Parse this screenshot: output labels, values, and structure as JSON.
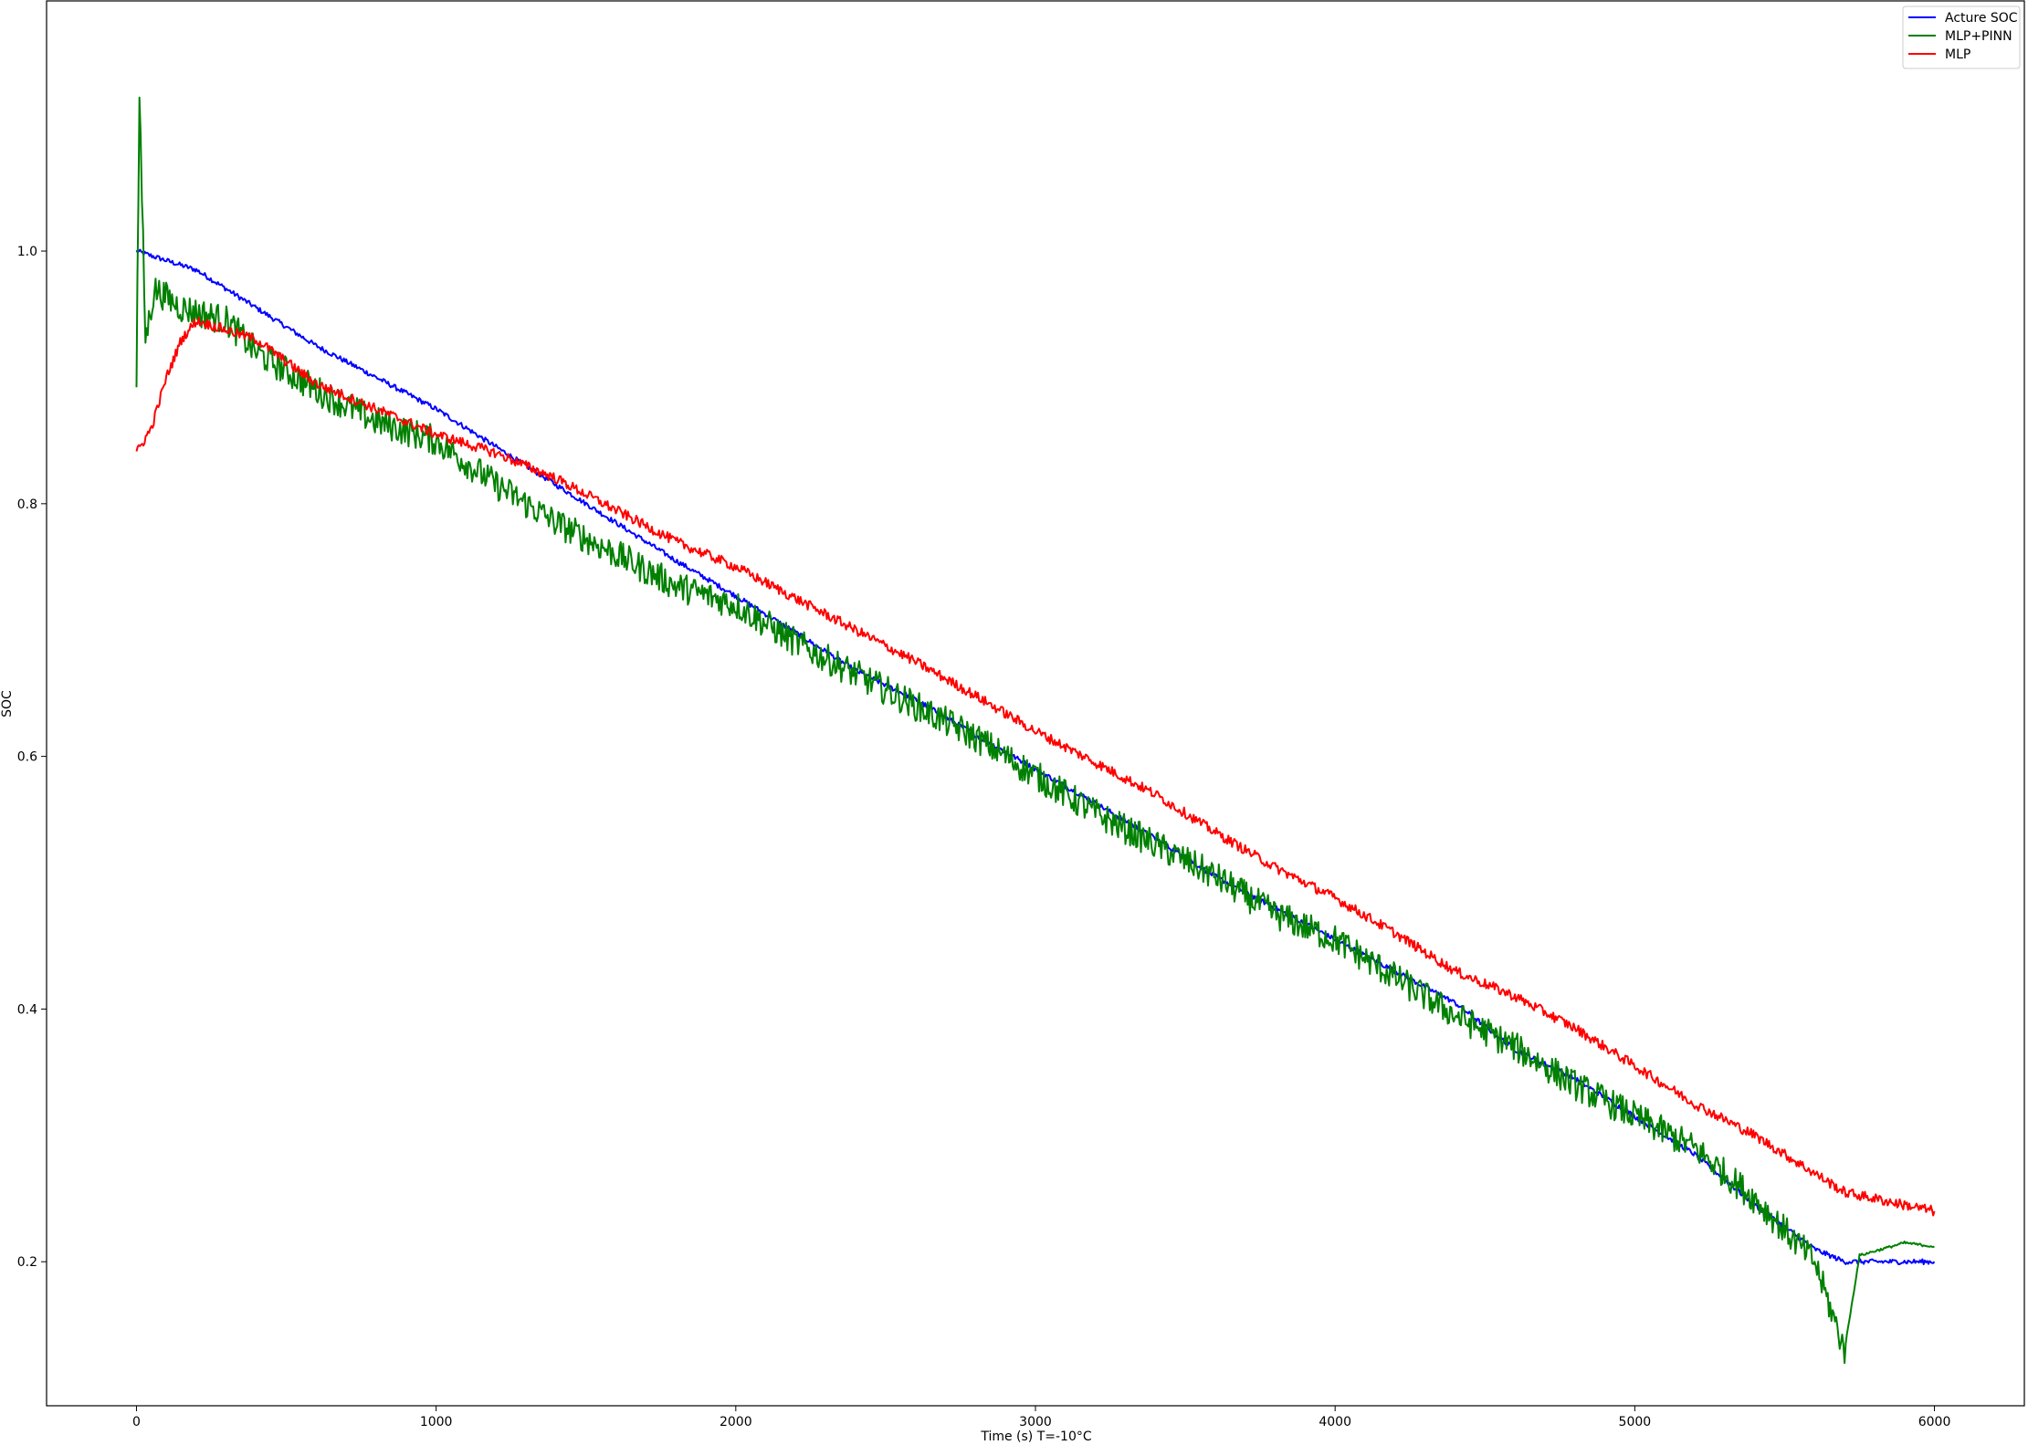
{
  "chart_data": {
    "type": "line",
    "title": "",
    "xlabel": "Time (s) T=-10°C",
    "ylabel": "SOC",
    "xlim": [
      -300,
      6300
    ],
    "ylim": [
      0.086,
      1.198
    ],
    "xticks": [
      0,
      1000,
      2000,
      3000,
      4000,
      5000,
      6000
    ],
    "yticks": [
      0.2,
      0.4,
      0.6,
      0.8,
      1.0
    ],
    "xtick_labels": [
      "0",
      "1000",
      "2000",
      "3000",
      "4000",
      "5000",
      "6000"
    ],
    "ytick_labels": [
      "0.2",
      "0.4",
      "0.6",
      "0.8",
      "1.0"
    ],
    "grid": false,
    "legend_position": "top-right",
    "series": [
      {
        "name": "Acture SOC",
        "color": "#0000ff",
        "points": [
          [
            0,
            1.0
          ],
          [
            200,
            0.985
          ],
          [
            400,
            0.955
          ],
          [
            600,
            0.925
          ],
          [
            800,
            0.9
          ],
          [
            1000,
            0.875
          ],
          [
            1200,
            0.845
          ],
          [
            1400,
            0.815
          ],
          [
            1600,
            0.785
          ],
          [
            1800,
            0.755
          ],
          [
            2000,
            0.727
          ],
          [
            2200,
            0.698
          ],
          [
            2400,
            0.668
          ],
          [
            2600,
            0.645
          ],
          [
            2800,
            0.617
          ],
          [
            3000,
            0.59
          ],
          [
            3200,
            0.563
          ],
          [
            3400,
            0.535
          ],
          [
            3600,
            0.505
          ],
          [
            3800,
            0.48
          ],
          [
            4000,
            0.455
          ],
          [
            4200,
            0.43
          ],
          [
            4400,
            0.405
          ],
          [
            4600,
            0.368
          ],
          [
            4800,
            0.345
          ],
          [
            5000,
            0.315
          ],
          [
            5200,
            0.285
          ],
          [
            5400,
            0.245
          ],
          [
            5600,
            0.21
          ],
          [
            5700,
            0.2
          ],
          [
            6000,
            0.2
          ]
        ]
      },
      {
        "name": "MLP+PINN",
        "color": "#008000",
        "points": [
          [
            0,
            0.9
          ],
          [
            10,
            1.12
          ],
          [
            30,
            0.93
          ],
          [
            60,
            0.97
          ],
          [
            150,
            0.955
          ],
          [
            300,
            0.945
          ],
          [
            400,
            0.92
          ],
          [
            600,
            0.89
          ],
          [
            800,
            0.865
          ],
          [
            1000,
            0.85
          ],
          [
            1200,
            0.815
          ],
          [
            1400,
            0.785
          ],
          [
            1600,
            0.76
          ],
          [
            1800,
            0.735
          ],
          [
            2000,
            0.72
          ],
          [
            2200,
            0.69
          ],
          [
            2400,
            0.665
          ],
          [
            2600,
            0.64
          ],
          [
            2800,
            0.615
          ],
          [
            3000,
            0.585
          ],
          [
            3200,
            0.555
          ],
          [
            3400,
            0.53
          ],
          [
            3600,
            0.505
          ],
          [
            3800,
            0.475
          ],
          [
            4000,
            0.455
          ],
          [
            4200,
            0.425
          ],
          [
            4400,
            0.395
          ],
          [
            4600,
            0.37
          ],
          [
            4800,
            0.34
          ],
          [
            5000,
            0.315
          ],
          [
            5200,
            0.29
          ],
          [
            5400,
            0.25
          ],
          [
            5600,
            0.2
          ],
          [
            5700,
            0.13
          ],
          [
            5750,
            0.205
          ],
          [
            5900,
            0.215
          ],
          [
            6000,
            0.212
          ]
        ]
      },
      {
        "name": "MLP",
        "color": "#ff0000",
        "points": [
          [
            0,
            0.84
          ],
          [
            50,
            0.86
          ],
          [
            100,
            0.9
          ],
          [
            150,
            0.93
          ],
          [
            200,
            0.945
          ],
          [
            400,
            0.93
          ],
          [
            600,
            0.895
          ],
          [
            800,
            0.875
          ],
          [
            1000,
            0.855
          ],
          [
            1200,
            0.84
          ],
          [
            1400,
            0.82
          ],
          [
            1600,
            0.795
          ],
          [
            1800,
            0.77
          ],
          [
            2000,
            0.75
          ],
          [
            2200,
            0.725
          ],
          [
            2400,
            0.7
          ],
          [
            2600,
            0.675
          ],
          [
            2800,
            0.648
          ],
          [
            3000,
            0.62
          ],
          [
            3200,
            0.595
          ],
          [
            3400,
            0.57
          ],
          [
            3600,
            0.54
          ],
          [
            3800,
            0.512
          ],
          [
            4000,
            0.488
          ],
          [
            4200,
            0.46
          ],
          [
            4400,
            0.43
          ],
          [
            4600,
            0.41
          ],
          [
            4800,
            0.385
          ],
          [
            5000,
            0.355
          ],
          [
            5200,
            0.325
          ],
          [
            5400,
            0.3
          ],
          [
            5600,
            0.27
          ],
          [
            5700,
            0.255
          ],
          [
            6000,
            0.24
          ]
        ]
      }
    ]
  }
}
